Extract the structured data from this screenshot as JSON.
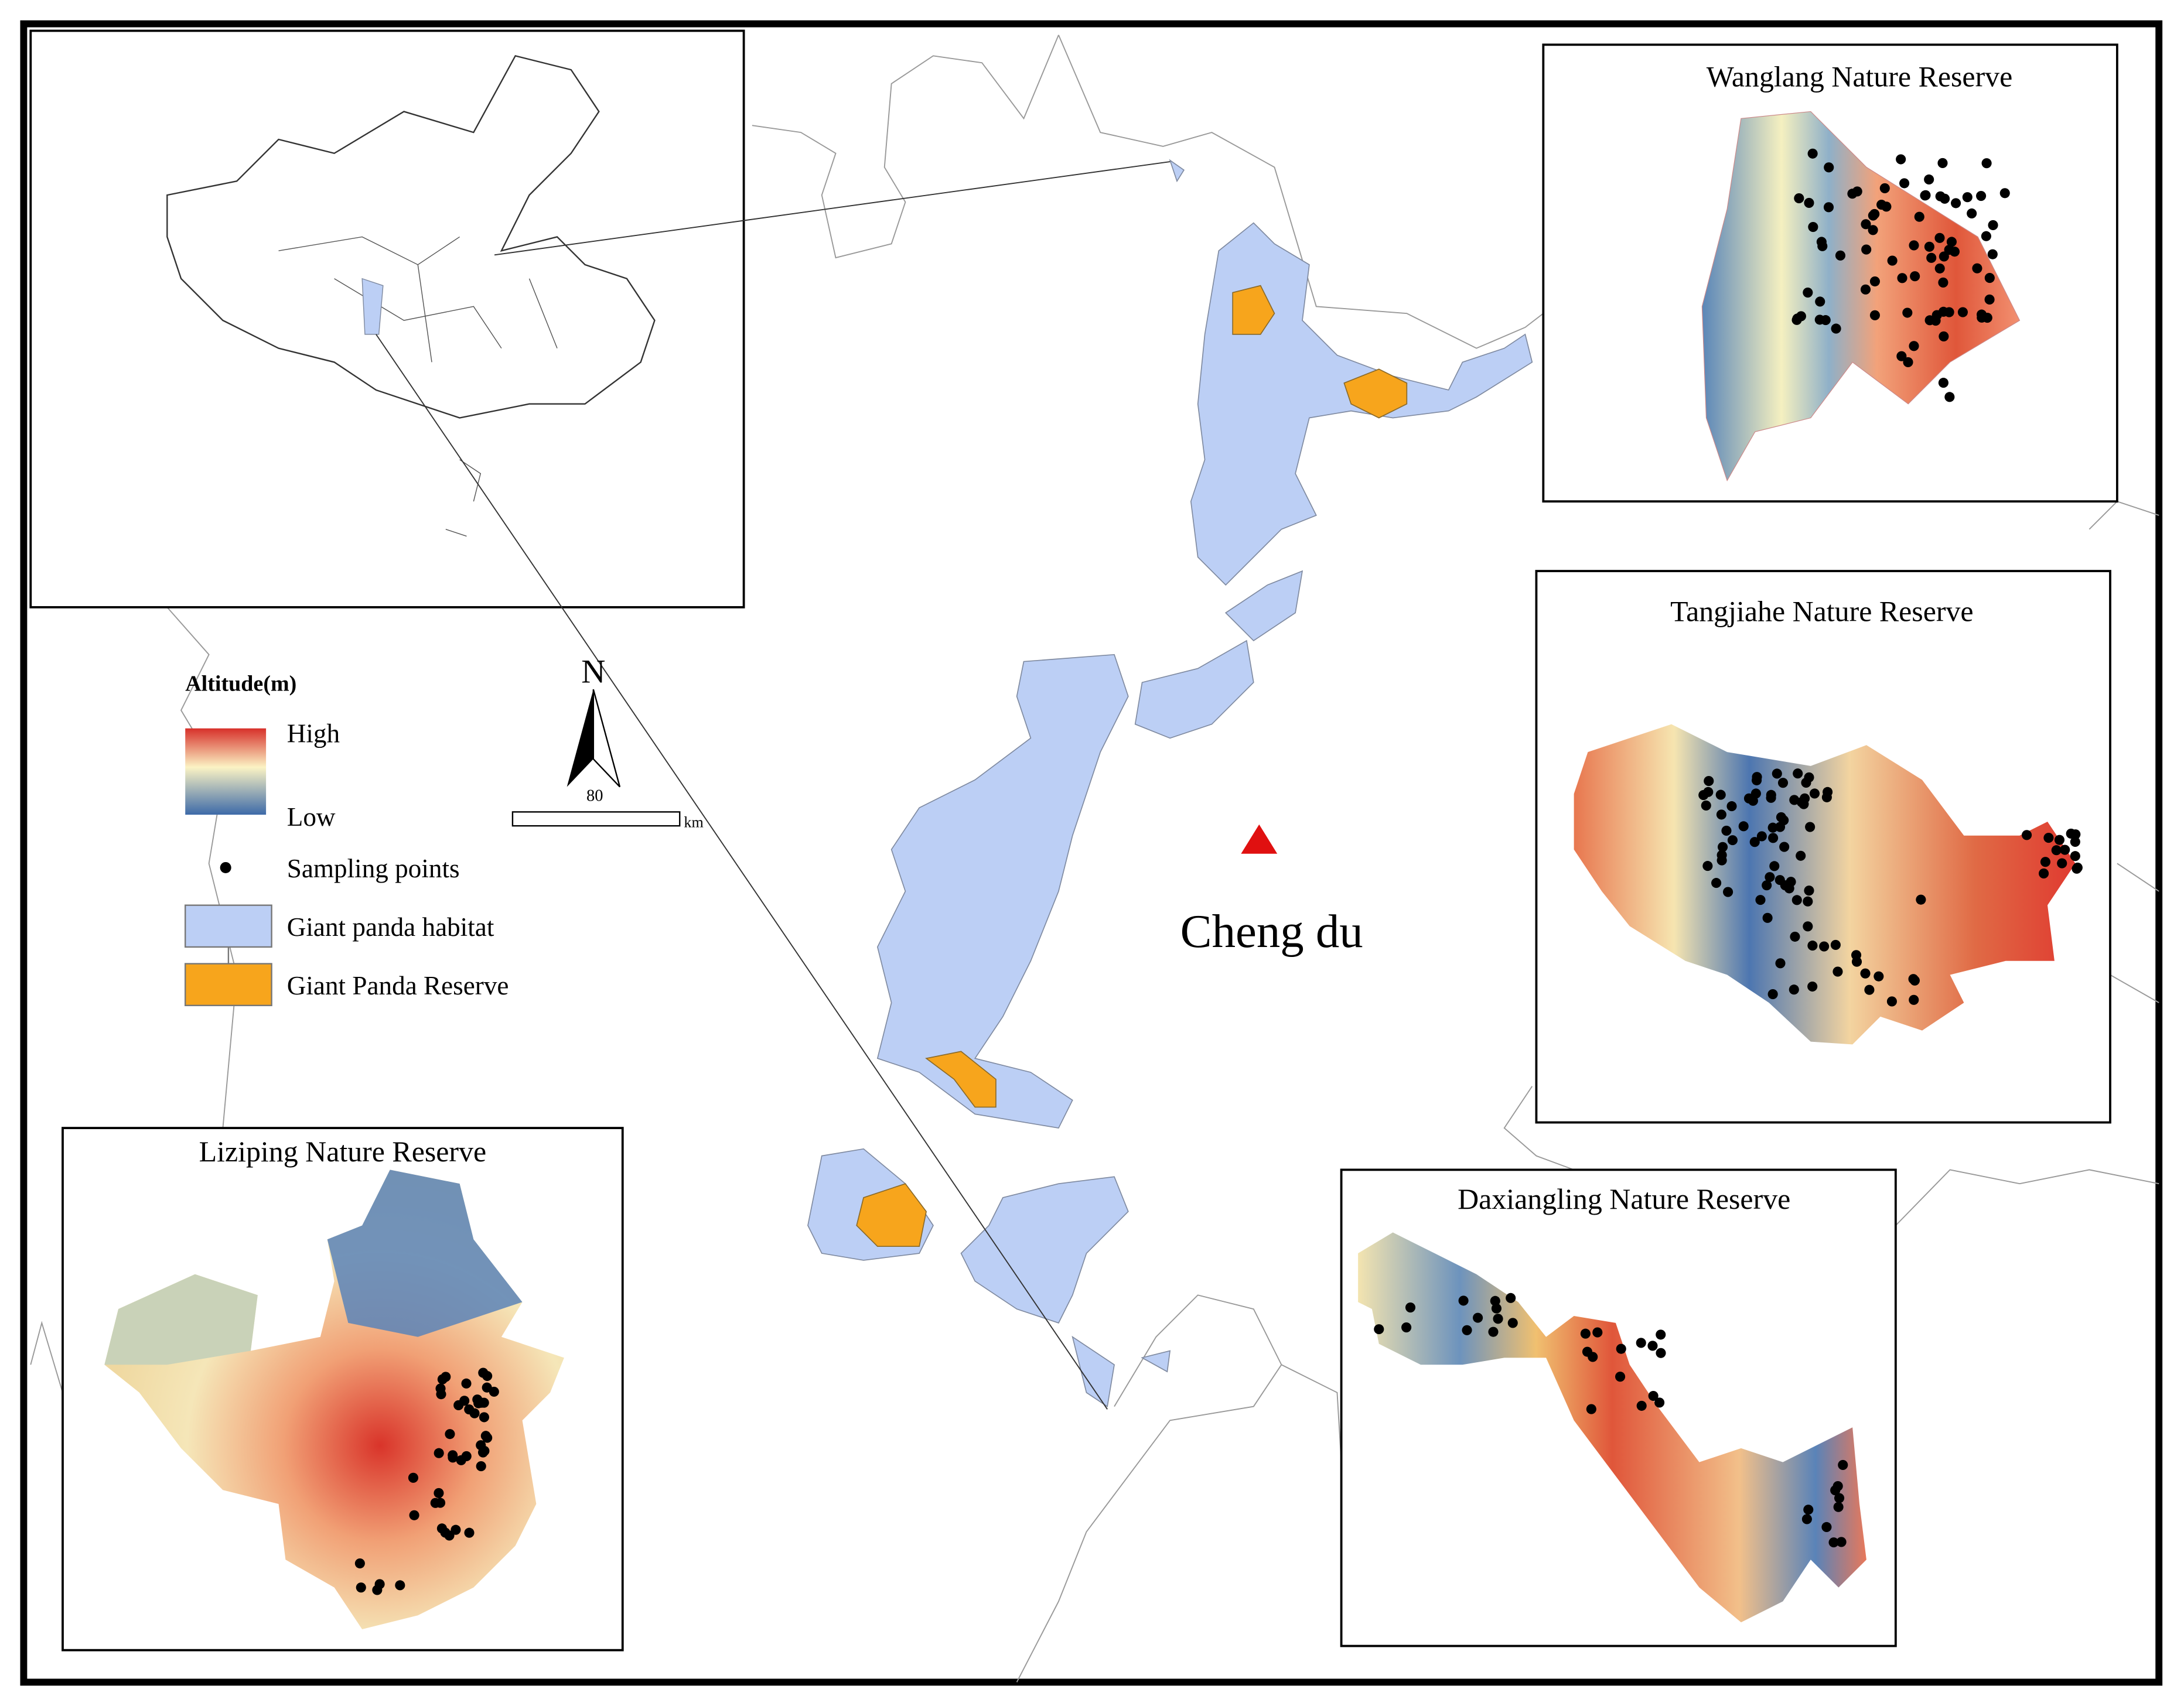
{
  "inset_maps": [
    {
      "title": "Wanglang Nature Reserve"
    },
    {
      "title": "Tangjiahe Nature Reserve"
    },
    {
      "title": "Daxiangling Nature Reserve"
    },
    {
      "title": "Liziping Nature Reserve"
    }
  ],
  "legend": {
    "title": "Altitude(m)",
    "high": "High",
    "low": "Low",
    "items": [
      "Sampling points",
      "Giant panda habitat",
      "Giant Panda Reserve"
    ]
  },
  "north_arrow": {
    "label": "N"
  },
  "scale_bar": {
    "value": 80,
    "unit": "km"
  },
  "city": {
    "label": "Cheng du"
  }
}
